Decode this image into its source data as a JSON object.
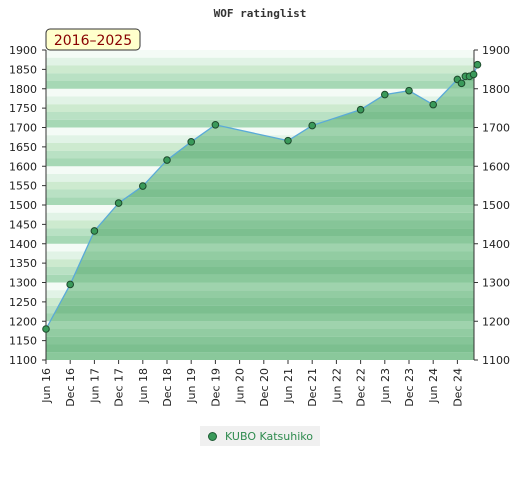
{
  "chart_data": {
    "type": "area",
    "title": "WOF ratinglist",
    "badge": "2016–2025",
    "ylim": [
      1100,
      1900
    ],
    "yticks": [
      1100,
      1150,
      1200,
      1250,
      1300,
      1350,
      1400,
      1450,
      1500,
      1550,
      1600,
      1650,
      1700,
      1750,
      1800,
      1850,
      1900
    ],
    "yticks_right": [
      1100,
      1200,
      1300,
      1400,
      1500,
      1600,
      1700,
      1800,
      1900
    ],
    "xticks": [
      "Jun 16",
      "Dec 16",
      "Jun 17",
      "Dec 17",
      "Jun 18",
      "Dec 18",
      "Jun 19",
      "Dec 19",
      "Jun 20",
      "Dec 20",
      "Jun 21",
      "Dec 21",
      "Jun 22",
      "Dec 22",
      "Jun 23",
      "Dec 23",
      "Jun 24",
      "Dec 24"
    ],
    "grid": true,
    "legend_position": "bottom",
    "series": [
      {
        "name": "KUBO Katsuhiko",
        "color": "#3a9a5a",
        "line_color": "#5aaad8",
        "points": [
          {
            "x": 0.0,
            "y": 1180
          },
          {
            "x": 1.0,
            "y": 1295
          },
          {
            "x": 2.0,
            "y": 1433
          },
          {
            "x": 3.0,
            "y": 1505
          },
          {
            "x": 4.0,
            "y": 1549
          },
          {
            "x": 5.0,
            "y": 1616
          },
          {
            "x": 6.0,
            "y": 1663
          },
          {
            "x": 7.0,
            "y": 1707
          },
          {
            "x": 10.0,
            "y": 1666
          },
          {
            "x": 11.0,
            "y": 1705
          },
          {
            "x": 13.0,
            "y": 1746
          },
          {
            "x": 14.0,
            "y": 1785
          },
          {
            "x": 15.0,
            "y": 1795
          },
          {
            "x": 16.0,
            "y": 1759
          },
          {
            "x": 17.0,
            "y": 1824
          },
          {
            "x": 17.17,
            "y": 1814
          },
          {
            "x": 17.33,
            "y": 1832
          },
          {
            "x": 17.5,
            "y": 1832
          },
          {
            "x": 17.67,
            "y": 1837
          },
          {
            "x": 17.83,
            "y": 1862
          }
        ]
      }
    ]
  }
}
